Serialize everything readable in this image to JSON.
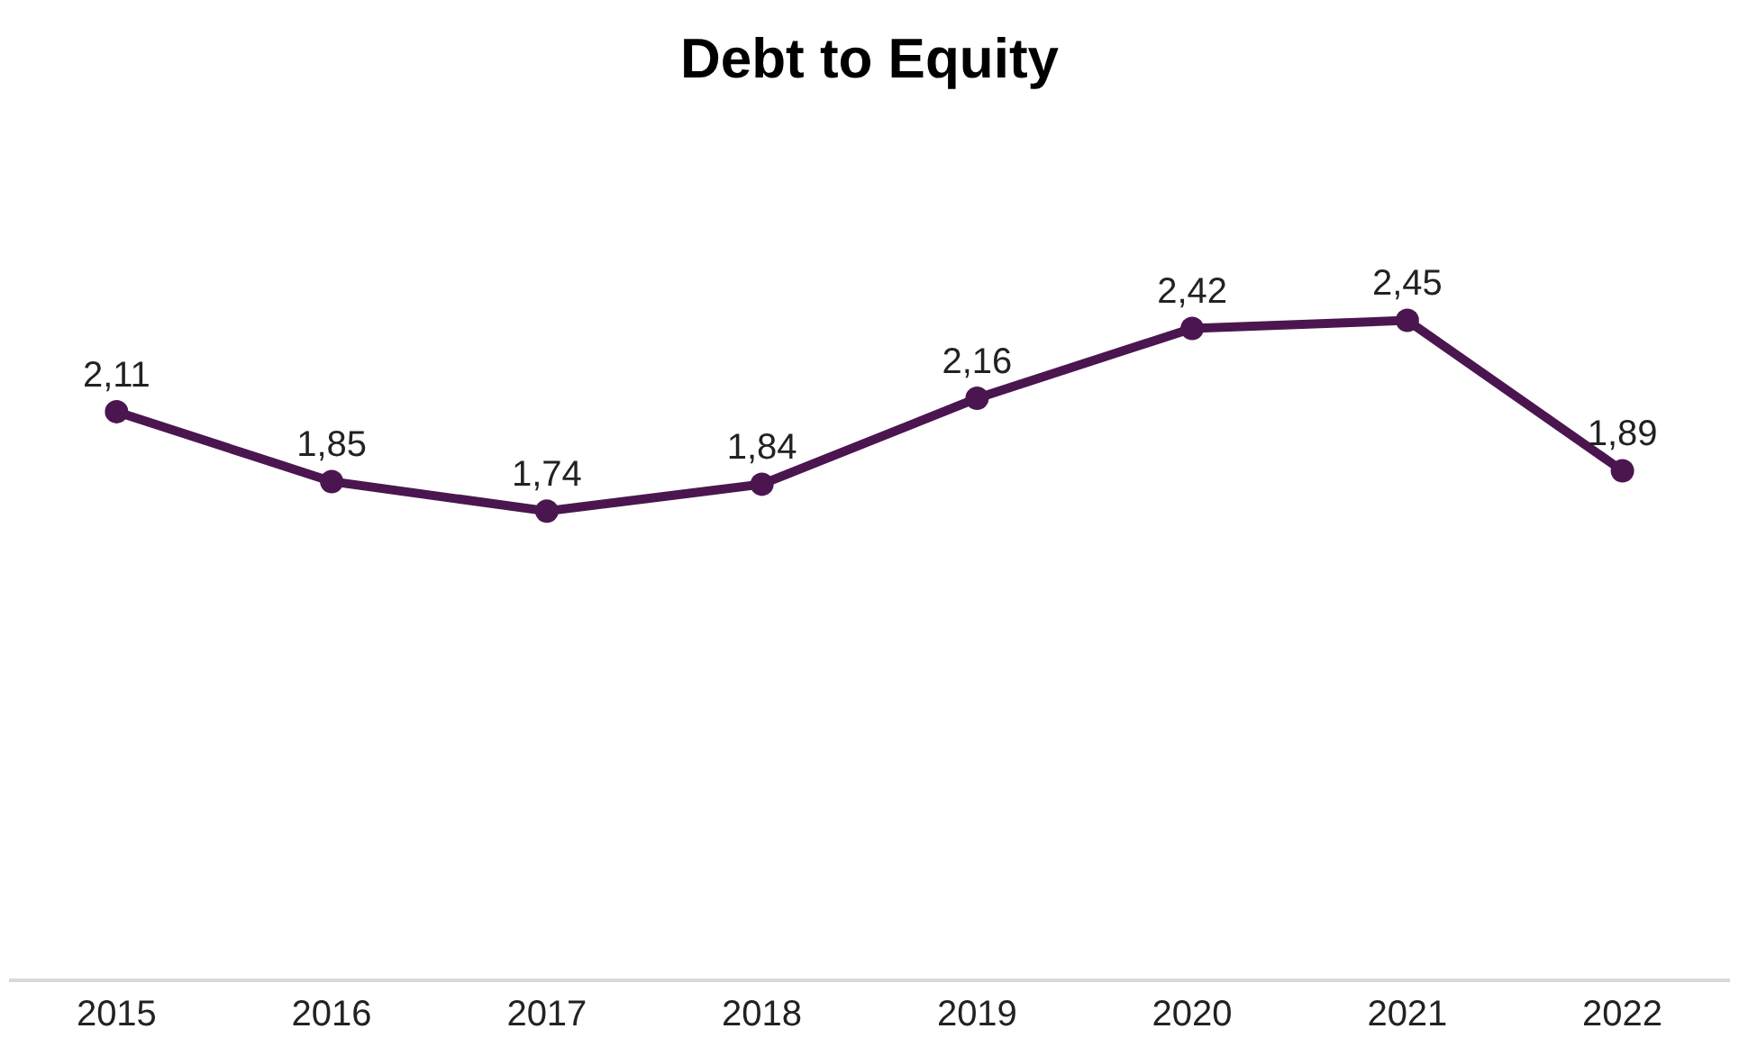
{
  "chart_data": {
    "type": "line",
    "title": "Debt to Equity",
    "categories": [
      "2015",
      "2016",
      "2017",
      "2018",
      "2019",
      "2020",
      "2021",
      "2022"
    ],
    "series": [
      {
        "color": "#4b1650",
        "values": [
          2.11,
          1.85,
          1.74,
          1.84,
          2.16,
          2.42,
          2.45,
          1.89
        ],
        "value_labels": [
          "2,11",
          "1,85",
          "1,74",
          "1,84",
          "2,16",
          "2,42",
          "2,45",
          "1,89"
        ]
      }
    ],
    "tick_labels": "x",
    "grid": false,
    "marker": "circle",
    "line_style": "solid"
  }
}
